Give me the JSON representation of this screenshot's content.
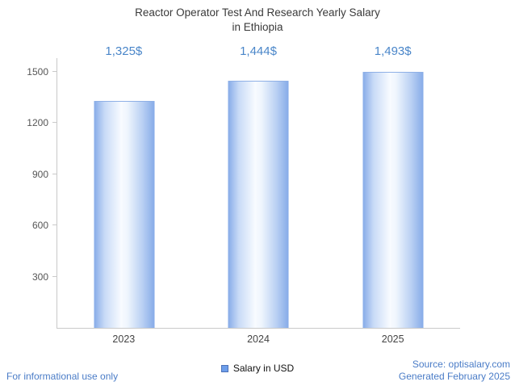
{
  "chart_data": {
    "type": "bar",
    "title": "Reactor Operator Test And Research Yearly Salary in Ethiopia",
    "title_lines": [
      "Reactor Operator Test And Research Yearly Salary",
      "in Ethiopia"
    ],
    "categories": [
      "2023",
      "2024",
      "2025"
    ],
    "values": [
      1325,
      1444,
      1493
    ],
    "value_labels": [
      "1,325$",
      "1,444$",
      "1,493$"
    ],
    "series": [
      {
        "name": "Salary in USD",
        "values": [
          1325,
          1444,
          1493
        ]
      }
    ],
    "yticks": [
      300,
      600,
      900,
      1200,
      1500
    ],
    "ylim": [
      0,
      1500
    ],
    "xlabel": "",
    "ylabel": "",
    "grid": false,
    "legend_position": "bottom",
    "bar_color": "#86abe8",
    "value_label_color": "#4a86c9"
  },
  "legend": {
    "label": "Salary in USD",
    "swatch_color": "#6d9eeb"
  },
  "footer": {
    "left": "For informational use only",
    "source": "Source: optisalary.com",
    "generated": "Generated February 2025",
    "link_color": "#4a7cc7"
  }
}
